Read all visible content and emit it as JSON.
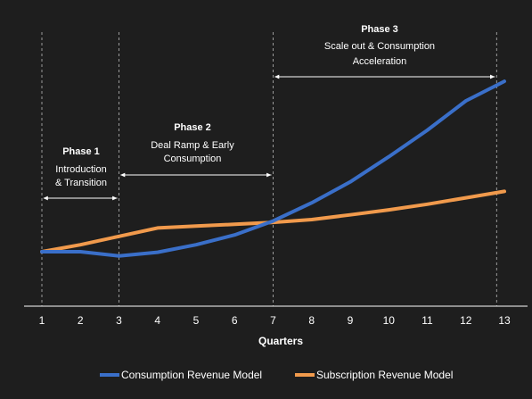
{
  "chart_data": {
    "type": "line",
    "xlabel": "Quarters",
    "x": [
      1,
      2,
      3,
      4,
      5,
      6,
      7,
      8,
      9,
      10,
      11,
      12,
      13
    ],
    "ylim": [
      0,
      100
    ],
    "grid": false,
    "legend_position": "bottom",
    "series": [
      {
        "name": "Consumption Revenue Model",
        "color": "#3a6fc9",
        "values": [
          20.0,
          20.0,
          18.5,
          19.8,
          22.5,
          26.0,
          31.0,
          37.5,
          45.0,
          54.0,
          63.5,
          74.0,
          81.0
        ]
      },
      {
        "name": "Subscription Revenue Model",
        "color": "#f19a4c",
        "values": [
          20.0,
          22.5,
          25.5,
          28.5,
          29.2,
          29.8,
          30.5,
          31.5,
          33.2,
          35.0,
          37.0,
          39.3,
          41.6
        ]
      }
    ],
    "phase_boundaries": [
      1,
      3,
      7,
      12.8
    ],
    "phases": [
      {
        "title": "Phase 1",
        "description": [
          "Introduction",
          "& Transition"
        ],
        "start": 1,
        "end": 3
      },
      {
        "title": "Phase 2",
        "description": [
          "Deal Ramp & Early",
          "Consumption"
        ],
        "start": 3,
        "end": 7
      },
      {
        "title": "Phase 3",
        "description": [
          "Scale out & Consumption",
          "Acceleration"
        ],
        "start": 7,
        "end": 12.8
      }
    ]
  },
  "colors": {
    "background": "#1e1e1e",
    "axis": "#ffffff",
    "divider": "#9a9a9a"
  }
}
